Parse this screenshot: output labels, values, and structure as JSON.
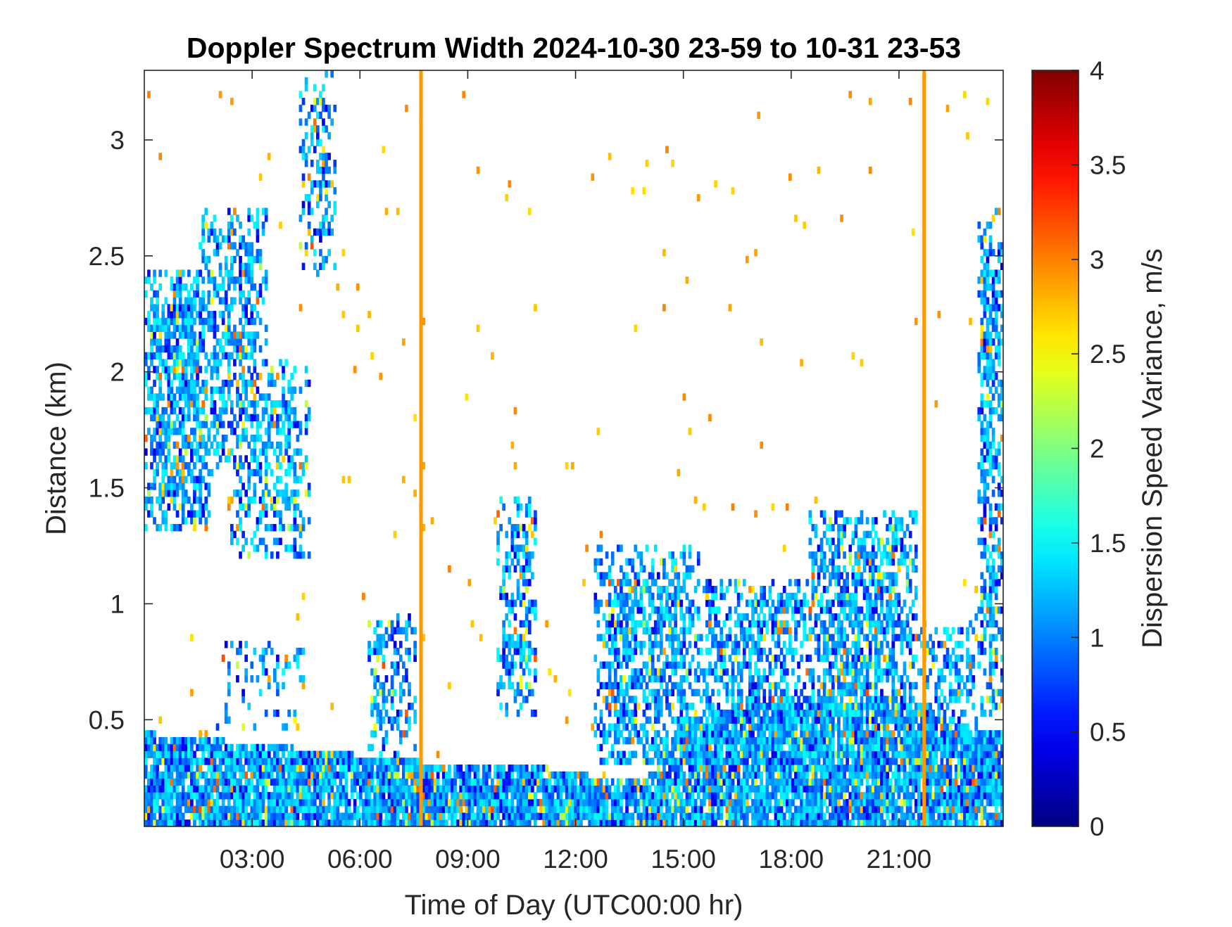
{
  "chart_data": {
    "type": "heatmap",
    "title": "Doppler Spectrum Width 2024-10-30 23-59 to 10-31 23-53",
    "xlabel": "Time of Day (UTC00:00 hr)",
    "ylabel": "Distance (km)",
    "colorbar_label": "Dispersion Speed Variance, m/s",
    "colormap": "jet",
    "xlim_hours": [
      0,
      23.9
    ],
    "ylim_km": [
      0.04,
      3.3
    ],
    "clim": [
      0,
      4
    ],
    "x_ticks": [
      {
        "value": 3,
        "label": "03:00"
      },
      {
        "value": 6,
        "label": "06:00"
      },
      {
        "value": 9,
        "label": "09:00"
      },
      {
        "value": 12,
        "label": "12:00"
      },
      {
        "value": 15,
        "label": "15:00"
      },
      {
        "value": 18,
        "label": "18:00"
      },
      {
        "value": 21,
        "label": "21:00"
      }
    ],
    "y_ticks": [
      {
        "value": 0.5,
        "label": "0.5"
      },
      {
        "value": 1,
        "label": "1"
      },
      {
        "value": 1.5,
        "label": "1.5"
      },
      {
        "value": 2,
        "label": "2"
      },
      {
        "value": 2.5,
        "label": "2.5"
      },
      {
        "value": 3,
        "label": "3"
      }
    ],
    "colorbar_ticks": [
      {
        "value": 0,
        "label": "0"
      },
      {
        "value": 0.5,
        "label": "0.5"
      },
      {
        "value": 1,
        "label": "1"
      },
      {
        "value": 1.5,
        "label": "1.5"
      },
      {
        "value": 2,
        "label": "2"
      },
      {
        "value": 2.5,
        "label": "2.5"
      },
      {
        "value": 3,
        "label": "3"
      },
      {
        "value": 3.5,
        "label": "3.5"
      },
      {
        "value": 4,
        "label": "4"
      }
    ],
    "typical_value_in_echo": 1.2,
    "artifact_columns": [
      {
        "time_hours": 7.7,
        "value": 2.9
      },
      {
        "time_hours": 21.7,
        "value": 2.9
      }
    ],
    "echo_top_profile_km": [
      {
        "time": 0.0,
        "top": 0.45
      },
      {
        "time": 1.0,
        "top": 0.42
      },
      {
        "time": 1.5,
        "top": 0.42
      },
      {
        "time": 3.0,
        "top": 0.4
      },
      {
        "time": 6.0,
        "top": 0.35
      },
      {
        "time": 7.7,
        "top": 0.32
      },
      {
        "time": 9.0,
        "top": 0.32
      },
      {
        "time": 10.5,
        "top": 0.32
      },
      {
        "time": 11.0,
        "top": 0.3
      },
      {
        "time": 12.0,
        "top": 0.27
      },
      {
        "time": 13.0,
        "top": 0.25
      },
      {
        "time": 14.0,
        "top": 0.25
      },
      {
        "time": 15.0,
        "top": 0.5
      },
      {
        "time": 18.0,
        "top": 0.6
      },
      {
        "time": 21.0,
        "top": 0.6
      },
      {
        "time": 23.0,
        "top": 0.45
      },
      {
        "time": 23.9,
        "top": 0.45
      }
    ],
    "echo_regions": [
      {
        "t0": 0.0,
        "t1": 1.8,
        "z0": 1.3,
        "z1": 2.45,
        "density": 0.75
      },
      {
        "t0": 1.5,
        "t1": 3.4,
        "z0": 1.55,
        "z1": 2.7,
        "density": 0.6
      },
      {
        "t0": 2.4,
        "t1": 4.6,
        "z0": 1.2,
        "z1": 2.05,
        "density": 0.5
      },
      {
        "t0": 4.3,
        "t1": 5.3,
        "z0": 2.4,
        "z1": 3.3,
        "density": 0.4
      },
      {
        "t0": 2.0,
        "t1": 4.5,
        "z0": 0.45,
        "z1": 0.85,
        "density": 0.22
      },
      {
        "t0": 6.2,
        "t1": 7.6,
        "z0": 0.35,
        "z1": 0.95,
        "density": 0.45
      },
      {
        "t0": 9.8,
        "t1": 10.9,
        "z0": 0.5,
        "z1": 1.45,
        "density": 0.55
      },
      {
        "t0": 12.5,
        "t1": 15.5,
        "z0": 0.3,
        "z1": 1.25,
        "density": 0.65
      },
      {
        "t0": 15.5,
        "t1": 18.5,
        "z0": 0.3,
        "z1": 1.1,
        "density": 0.6
      },
      {
        "t0": 18.5,
        "t1": 21.5,
        "z0": 0.3,
        "z1": 1.4,
        "density": 0.72
      },
      {
        "t0": 21.5,
        "t1": 23.2,
        "z0": 0.3,
        "z1": 0.95,
        "density": 0.45
      },
      {
        "t0": 23.2,
        "t1": 23.9,
        "z0": 0.5,
        "z1": 2.7,
        "density": 0.6
      }
    ]
  }
}
